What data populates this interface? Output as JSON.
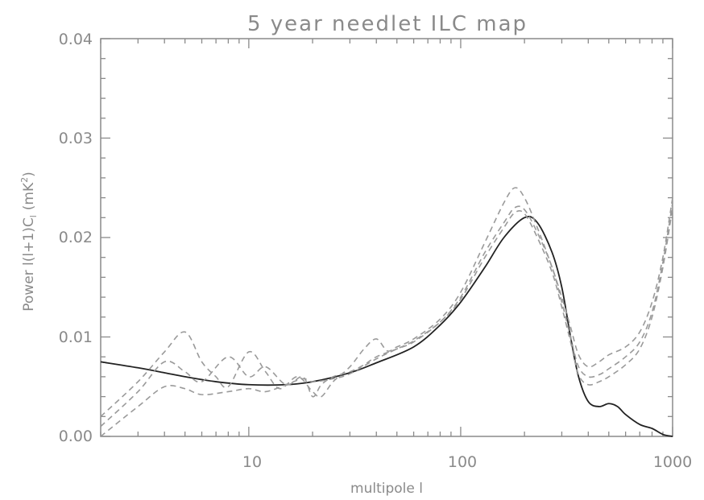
{
  "chart_data": {
    "type": "line",
    "title": "5 year needlet ILC map",
    "xlabel": "multipole l",
    "ylabel": "Power l(l+1)C",
    "ylabel_sub": "l",
    "ylabel_unit": "(mK",
    "ylabel_unit_sup": "2",
    "ylabel_unit_close": ")",
    "x_scale": "log",
    "xlim": [
      2,
      1000
    ],
    "ylim": [
      0.0,
      0.04
    ],
    "x_tick_labels": [
      "10",
      "100",
      "1000"
    ],
    "y_tick_labels": [
      "0.00",
      "0.01",
      "0.02",
      "0.03",
      "0.04"
    ],
    "grid": false,
    "colors": {
      "axis": "#8a8a8a",
      "solid": "#222222",
      "dashed": "#9a9a9a"
    },
    "series": [
      {
        "style": "solid",
        "x": [
          2,
          3,
          4,
          5,
          7,
          10,
          15,
          20,
          30,
          40,
          60,
          80,
          100,
          130,
          160,
          200,
          230,
          270,
          300,
          330,
          360,
          400,
          450,
          500,
          550,
          600,
          700,
          800,
          900,
          1000
        ],
        "y": [
          0.0075,
          0.0069,
          0.0064,
          0.006,
          0.0055,
          0.0052,
          0.0052,
          0.0055,
          0.0064,
          0.0074,
          0.009,
          0.0112,
          0.0135,
          0.017,
          0.02,
          0.022,
          0.0215,
          0.0185,
          0.015,
          0.01,
          0.006,
          0.0035,
          0.003,
          0.0033,
          0.003,
          0.0022,
          0.0012,
          0.0008,
          0.0002,
          0.0
        ]
      },
      {
        "style": "dashed",
        "x": [
          2,
          3,
          4,
          5,
          6,
          7,
          8,
          10,
          12,
          14,
          17,
          20,
          22,
          25,
          30,
          35,
          40,
          45,
          50,
          60,
          80,
          100,
          130,
          160,
          180,
          200,
          230,
          270,
          300,
          330,
          360,
          400,
          450,
          500,
          600,
          700,
          800,
          900,
          1000
        ],
        "y": [
          0.002,
          0.0055,
          0.0085,
          0.0105,
          0.0075,
          0.006,
          0.005,
          0.0085,
          0.0065,
          0.0048,
          0.006,
          0.0045,
          0.004,
          0.0055,
          0.007,
          0.0088,
          0.0098,
          0.0086,
          0.009,
          0.0098,
          0.0118,
          0.0145,
          0.0195,
          0.0235,
          0.025,
          0.024,
          0.021,
          0.017,
          0.014,
          0.011,
          0.0082,
          0.007,
          0.0075,
          0.0082,
          0.009,
          0.0105,
          0.0135,
          0.018,
          0.024
        ]
      },
      {
        "style": "dashed",
        "x": [
          2,
          3,
          4,
          5,
          6,
          8,
          10,
          12,
          15,
          18,
          20,
          22,
          25,
          30,
          35,
          40,
          50,
          60,
          80,
          100,
          130,
          160,
          180,
          200,
          230,
          270,
          300,
          330,
          360,
          400,
          450,
          500,
          600,
          700,
          800,
          900,
          1000
        ],
        "y": [
          0.001,
          0.0045,
          0.0075,
          0.0065,
          0.0055,
          0.008,
          0.006,
          0.007,
          0.0052,
          0.006,
          0.004,
          0.0052,
          0.006,
          0.0065,
          0.0072,
          0.008,
          0.0088,
          0.0095,
          0.0115,
          0.014,
          0.0185,
          0.0215,
          0.023,
          0.0228,
          0.0205,
          0.017,
          0.0135,
          0.01,
          0.007,
          0.006,
          0.0062,
          0.0068,
          0.008,
          0.0095,
          0.0125,
          0.0175,
          0.0235
        ]
      },
      {
        "style": "dashed",
        "x": [
          2,
          3,
          4,
          5,
          6,
          8,
          10,
          12,
          15,
          18,
          20,
          25,
          30,
          40,
          50,
          60,
          80,
          100,
          130,
          160,
          180,
          200,
          230,
          270,
          300,
          330,
          360,
          400,
          450,
          500,
          600,
          700,
          800,
          900,
          1000
        ],
        "y": [
          0.0,
          0.003,
          0.005,
          0.0048,
          0.0042,
          0.0045,
          0.0048,
          0.0045,
          0.0052,
          0.0058,
          0.0055,
          0.0058,
          0.0063,
          0.0078,
          0.0088,
          0.0096,
          0.0115,
          0.0138,
          0.018,
          0.021,
          0.0225,
          0.0224,
          0.02,
          0.0165,
          0.013,
          0.0095,
          0.0062,
          0.0052,
          0.0055,
          0.006,
          0.0072,
          0.0088,
          0.012,
          0.017,
          0.023
        ]
      }
    ]
  }
}
